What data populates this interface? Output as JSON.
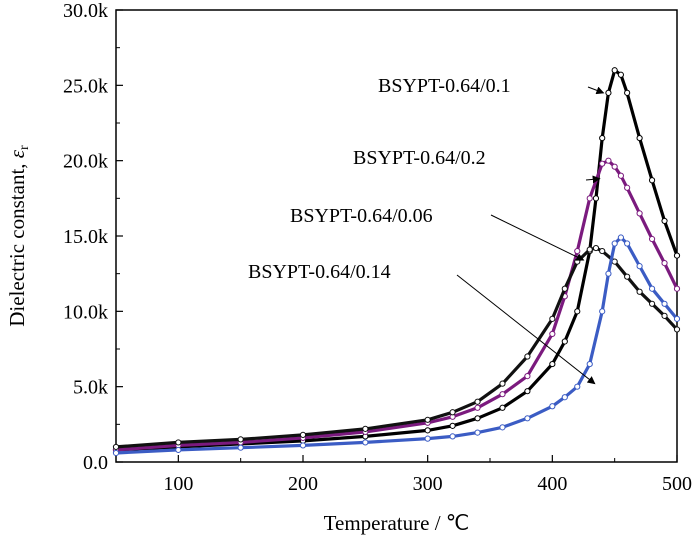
{
  "chart_data": {
    "type": "line",
    "xlabel": "Temperature / ℃",
    "ylabel": "Dielectric constant, ",
    "ylabel_symbol": "ε",
    "ylabel_subscript": "r",
    "xlim": [
      50,
      500
    ],
    "ylim": [
      0,
      30000
    ],
    "x_ticks": [
      100,
      200,
      300,
      400,
      500
    ],
    "x_tick_labels": [
      "100",
      "200",
      "300",
      "400",
      "500"
    ],
    "y_ticks": [
      0,
      5000,
      10000,
      15000,
      20000,
      25000,
      30000
    ],
    "y_tick_labels": [
      "0.0",
      "5.0k",
      "10.0k",
      "15.0k",
      "20.0k",
      "25.0k",
      "30.0k"
    ],
    "grid": false,
    "series": [
      {
        "name": "BSYPT-0.64/0.1",
        "color": "#000000",
        "x": [
          50,
          100,
          150,
          200,
          250,
          300,
          320,
          340,
          360,
          380,
          400,
          410,
          420,
          430,
          435,
          440,
          445,
          450,
          455,
          460,
          470,
          480,
          490,
          500
        ],
        "y": [
          800,
          1000,
          1200,
          1400,
          1700,
          2100,
          2400,
          2900,
          3600,
          4700,
          6500,
          8000,
          10000,
          14000,
          17500,
          21500,
          24500,
          26000,
          25700,
          24500,
          21500,
          18700,
          16000,
          13700
        ]
      },
      {
        "name": "BSYPT-0.64/0.2",
        "color": "#7b1a7e",
        "x": [
          50,
          100,
          150,
          200,
          250,
          300,
          320,
          340,
          360,
          380,
          400,
          410,
          420,
          430,
          440,
          445,
          450,
          455,
          460,
          470,
          480,
          490,
          500
        ],
        "y": [
          800,
          1100,
          1300,
          1600,
          2000,
          2600,
          3000,
          3600,
          4500,
          5700,
          8500,
          11000,
          14000,
          17500,
          19800,
          20000,
          19600,
          19000,
          18200,
          16500,
          14800,
          13200,
          11500
        ]
      },
      {
        "name": "BSYPT-0.64/0.06",
        "color": "#111111",
        "x": [
          50,
          100,
          150,
          200,
          250,
          300,
          320,
          340,
          360,
          380,
          400,
          410,
          420,
          430,
          435,
          440,
          450,
          460,
          470,
          480,
          490,
          500
        ],
        "y": [
          1000,
          1300,
          1500,
          1800,
          2200,
          2800,
          3300,
          4000,
          5200,
          7000,
          9500,
          11500,
          13300,
          14100,
          14200,
          14000,
          13300,
          12300,
          11300,
          10500,
          9700,
          8800
        ]
      },
      {
        "name": "BSYPT-0.64/0.14",
        "color": "#3b5cc4",
        "x": [
          50,
          100,
          150,
          200,
          250,
          300,
          320,
          340,
          360,
          380,
          400,
          410,
          420,
          430,
          440,
          445,
          450,
          455,
          460,
          470,
          480,
          490,
          500
        ],
        "y": [
          600,
          800,
          950,
          1100,
          1300,
          1550,
          1700,
          1950,
          2300,
          2900,
          3700,
          4300,
          5000,
          6500,
          10000,
          12500,
          14500,
          14900,
          14500,
          13000,
          11500,
          10500,
          9500
        ]
      }
    ],
    "annotations": [
      {
        "label": "BSYPT-0.64/0.1",
        "target_x": 441,
        "target_y": 24500
      },
      {
        "label": "BSYPT-0.64/0.2",
        "target_x": 438,
        "target_y": 18800
      },
      {
        "label": "BSYPT-0.64/0.06",
        "target_x": 425,
        "target_y": 13400
      },
      {
        "label": "BSYPT-0.64/0.14",
        "target_x": 434,
        "target_y": 5200
      }
    ]
  }
}
